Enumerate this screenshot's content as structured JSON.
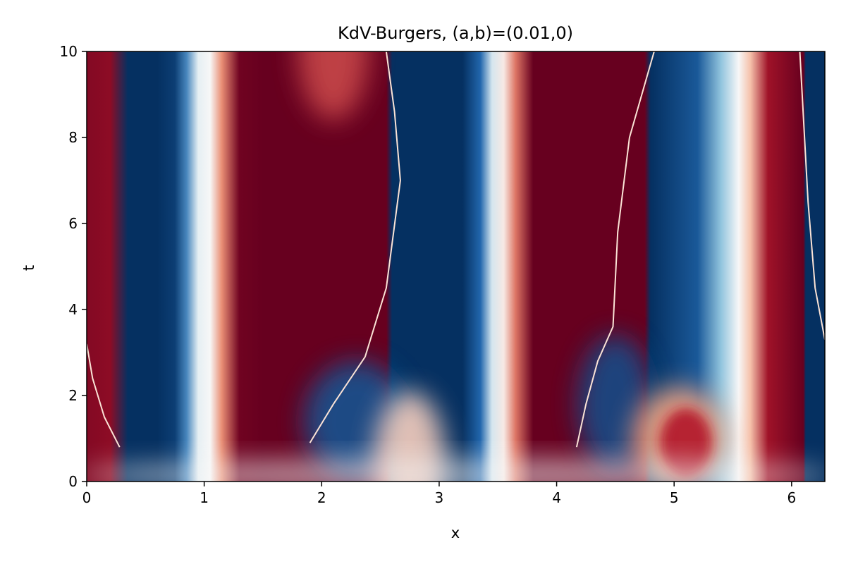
{
  "chart_data": {
    "type": "heatmap",
    "title": "KdV-Burgers, (a,b)=(0.01,0)",
    "xlabel": "x",
    "ylabel": "t",
    "xlim": [
      0,
      6.283
    ],
    "ylim": [
      0,
      10
    ],
    "xticks": [
      0,
      1,
      2,
      3,
      4,
      5,
      6
    ],
    "yticks": [
      0,
      2,
      4,
      6,
      8,
      10
    ],
    "colormap": "RdBu_r",
    "colors": {
      "deep_blue": "#053061",
      "white": "#f7f7f7",
      "deep_red": "#67001f"
    },
    "grid": false,
    "colorbar": false,
    "columns_by_x": [
      {
        "x": 0.0,
        "value": 0.85
      },
      {
        "x": 0.2,
        "value": 0.8
      },
      {
        "x": 0.35,
        "value": -1.0
      },
      {
        "x": 0.6,
        "value": -1.0
      },
      {
        "x": 0.75,
        "value": -0.9
      },
      {
        "x": 0.85,
        "value": -0.5
      },
      {
        "x": 0.95,
        "value": -0.05
      },
      {
        "x": 1.05,
        "value": 0.0
      },
      {
        "x": 1.15,
        "value": 0.35
      },
      {
        "x": 1.3,
        "value": 0.95
      },
      {
        "x": 1.5,
        "value": 1.0
      },
      {
        "x": 2.55,
        "value": 1.0
      },
      {
        "x": 2.6,
        "value": -1.0
      },
      {
        "x": 3.2,
        "value": -1.0
      },
      {
        "x": 3.35,
        "value": -0.6
      },
      {
        "x": 3.45,
        "value": -0.1
      },
      {
        "x": 3.55,
        "value": 0.05
      },
      {
        "x": 3.65,
        "value": 0.4
      },
      {
        "x": 3.8,
        "value": 1.0
      },
      {
        "x": 4.75,
        "value": 1.0
      },
      {
        "x": 4.8,
        "value": -1.0
      },
      {
        "x": 5.2,
        "value": -0.7
      },
      {
        "x": 5.4,
        "value": -0.3
      },
      {
        "x": 5.55,
        "value": 0.0
      },
      {
        "x": 5.65,
        "value": 0.2
      },
      {
        "x": 5.8,
        "value": 0.7
      },
      {
        "x": 6.1,
        "value": 1.0
      },
      {
        "x": 6.12,
        "value": -1.0
      },
      {
        "x": 6.283,
        "value": -1.0
      }
    ],
    "shock_fronts": [
      {
        "points": [
          [
            0.0,
            3.2
          ],
          [
            0.05,
            2.4
          ],
          [
            0.15,
            1.5
          ],
          [
            0.28,
            0.8
          ]
        ]
      },
      {
        "points": [
          [
            1.9,
            0.9
          ],
          [
            2.1,
            1.8
          ],
          [
            2.37,
            2.9
          ],
          [
            2.55,
            4.5
          ],
          [
            2.67,
            7.0
          ],
          [
            2.62,
            8.6
          ],
          [
            2.55,
            10.0
          ]
        ]
      },
      {
        "points": [
          [
            4.17,
            0.8
          ],
          [
            4.25,
            1.8
          ],
          [
            4.35,
            2.8
          ],
          [
            4.48,
            3.6
          ],
          [
            4.52,
            5.8
          ],
          [
            4.62,
            8.0
          ],
          [
            4.83,
            10.0
          ]
        ]
      },
      {
        "points": [
          [
            6.283,
            3.3
          ],
          [
            6.2,
            4.5
          ],
          [
            6.14,
            6.5
          ],
          [
            6.1,
            8.5
          ],
          [
            6.07,
            10.0
          ]
        ]
      }
    ],
    "regions": [
      {
        "name": "bottom-blue-lobe-1",
        "cx": 2.3,
        "ct": 1.4,
        "rx": 0.45,
        "rt": 1.4,
        "value": -0.75
      },
      {
        "name": "bottom-light-lobe-1",
        "cx": 2.75,
        "ct": 0.5,
        "rx": 0.3,
        "rt": 1.6,
        "value": 0.15
      },
      {
        "name": "bottom-blue-lobe-2",
        "cx": 4.5,
        "ct": 1.8,
        "rx": 0.32,
        "rt": 1.6,
        "value": -0.8
      },
      {
        "name": "bottom-light-lobe-2",
        "cx": 5.05,
        "ct": 1.0,
        "rx": 0.4,
        "rt": 1.2,
        "value": 0.3
      },
      {
        "name": "bottom-red-bump",
        "cx": 5.1,
        "ct": 0.9,
        "rx": 0.22,
        "rt": 0.8,
        "value": 0.6
      },
      {
        "name": "top-light-bump",
        "cx": 2.1,
        "ct": 10.0,
        "rx": 0.3,
        "rt": 1.6,
        "value": 0.5
      },
      {
        "name": "initial-strip",
        "cx": 3.14,
        "ct": 0.15,
        "rx": 3.2,
        "rt": 0.4,
        "value": 0.0
      }
    ]
  }
}
